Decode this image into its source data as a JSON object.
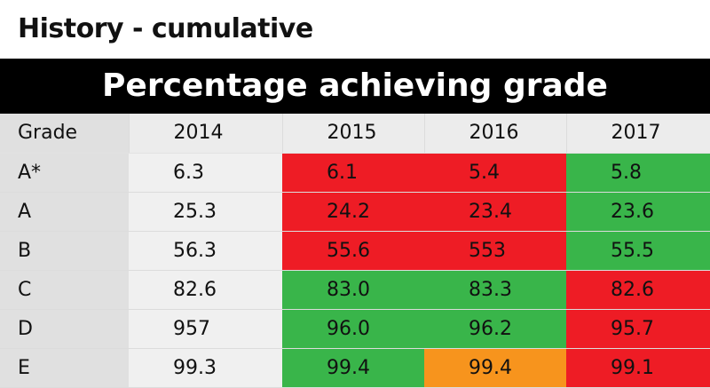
{
  "page": {
    "title": "History - cumulative"
  },
  "chart_data": {
    "type": "table",
    "title": "Percentage achieving grade",
    "header": {
      "grade": "Grade",
      "years": [
        "2014",
        "2015",
        "2016",
        "2017"
      ]
    },
    "rows": [
      {
        "grade": "A*",
        "values": [
          "6.3",
          "6.1",
          "5.4",
          "5.8"
        ],
        "colors": [
          "base",
          "red",
          "red",
          "green"
        ]
      },
      {
        "grade": "A",
        "values": [
          "25.3",
          "24.2",
          "23.4",
          "23.6"
        ],
        "colors": [
          "base",
          "red",
          "red",
          "green"
        ]
      },
      {
        "grade": "B",
        "values": [
          "56.3",
          "55.6",
          "553",
          "55.5"
        ],
        "colors": [
          "base",
          "red",
          "red",
          "green"
        ]
      },
      {
        "grade": "C",
        "values": [
          "82.6",
          "83.0",
          "83.3",
          "82.6"
        ],
        "colors": [
          "base",
          "green",
          "green",
          "red"
        ]
      },
      {
        "grade": "D",
        "values": [
          "957",
          "96.0",
          "96.2",
          "95.7"
        ],
        "colors": [
          "base",
          "green",
          "green",
          "red"
        ]
      },
      {
        "grade": "E",
        "values": [
          "99.3",
          "99.4",
          "99.4",
          "99.1"
        ],
        "colors": [
          "base",
          "green",
          "orange",
          "red"
        ]
      }
    ],
    "palette": {
      "red": "#ee1c25",
      "green": "#39b54a",
      "orange": "#f7941d",
      "base": "#f0f0f0"
    }
  }
}
